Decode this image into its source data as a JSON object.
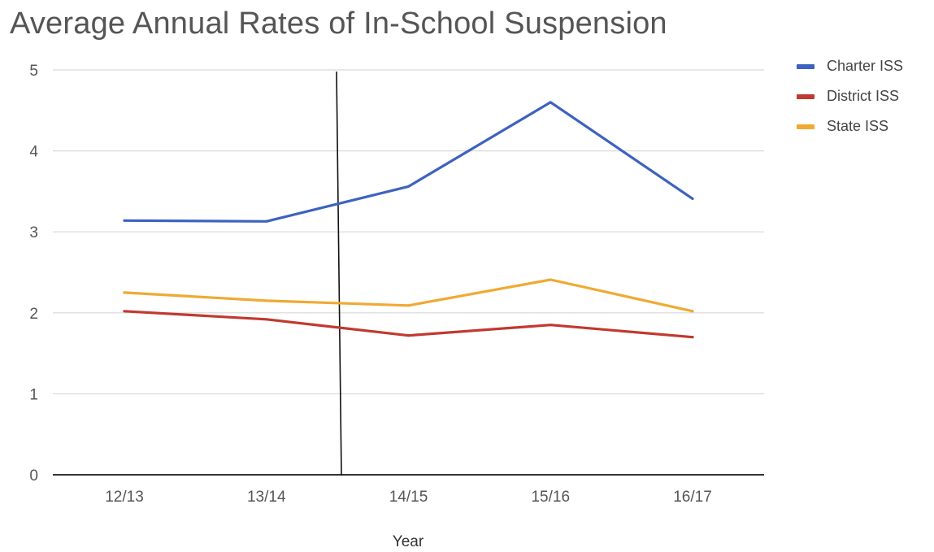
{
  "chart_data": {
    "type": "line",
    "title": "Average Annual Rates of In-School Suspension",
    "xlabel": "Year",
    "ylabel": "",
    "categories": [
      "12/13",
      "13/14",
      "14/15",
      "15/16",
      "16/17"
    ],
    "ylim": [
      0,
      5
    ],
    "yticks": [
      "0",
      "1",
      "2",
      "3",
      "4",
      "5"
    ],
    "grid": true,
    "legend_position": "right",
    "series": [
      {
        "name": "Charter ISS",
        "color": "#3d62c0",
        "values": [
          3.14,
          3.13,
          3.56,
          4.6,
          3.41
        ]
      },
      {
        "name": "District ISS",
        "color": "#c1392f",
        "values": [
          2.02,
          1.92,
          1.72,
          1.85,
          1.7
        ]
      },
      {
        "name": "State ISS",
        "color": "#f0a933",
        "values": [
          2.25,
          2.15,
          2.09,
          2.41,
          2.02
        ]
      }
    ]
  }
}
